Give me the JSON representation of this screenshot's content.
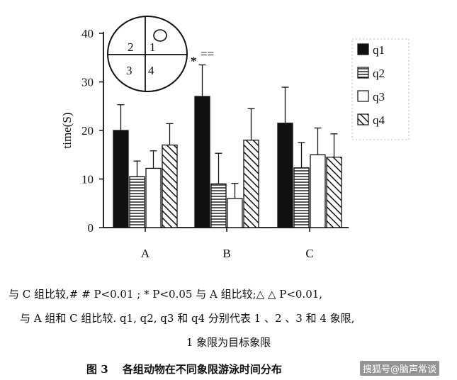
{
  "chart_data": {
    "type": "bar",
    "categories": [
      "A",
      "B",
      "C"
    ],
    "series": [
      {
        "name": "q1",
        "values": [
          20,
          27,
          21.5
        ],
        "errors": [
          5.3,
          6.5,
          7.4
        ],
        "pattern": "solid"
      },
      {
        "name": "q2",
        "values": [
          10.5,
          9,
          12.3
        ],
        "errors": [
          3.2,
          6.3,
          5.2
        ],
        "pattern": "hlines"
      },
      {
        "name": "q3",
        "values": [
          12.2,
          6,
          15
        ],
        "errors": [
          3.6,
          3.1,
          5.5
        ],
        "pattern": "open"
      },
      {
        "name": "q4",
        "values": [
          17,
          18,
          14.5
        ],
        "errors": [
          4.4,
          6.5,
          4.8
        ],
        "pattern": "diagonal"
      }
    ],
    "ylabel": "time(S)",
    "xlabel": "",
    "ylim": [
      0,
      40
    ],
    "yticks": [
      0,
      10,
      20,
      30,
      40
    ],
    "legend": {
      "entries": [
        "q1",
        "q2",
        "q3",
        "q4"
      ],
      "placement": "top-right"
    },
    "annotations": [
      {
        "text": "*",
        "category": "B",
        "series": "q1"
      },
      {
        "text": "==",
        "category": "B",
        "series": "q1"
      }
    ],
    "inset": {
      "type": "quadrant-diagram",
      "labels": [
        "2",
        "1",
        "3",
        "4"
      ],
      "target_quadrant": "1"
    },
    "grid": false,
    "colors": {
      "bar_fill": "#111111",
      "background": "#ffffff"
    }
  },
  "caption": {
    "line1": "与 C 组比较,# # P<0.01 ; * P<0.05 与 A 组比较;△ △ P<0.01,",
    "line2": "与 A 组和 C 组比较. q1, q2, q3 和 q4 分别代表 1 、2 、3 和 4 象限,",
    "line3": "1 象限为目标象限",
    "figure_title": "图 3　 各组动物在不同象限游泳时间分布"
  },
  "watermark": "搜狐号@脑声常谈"
}
